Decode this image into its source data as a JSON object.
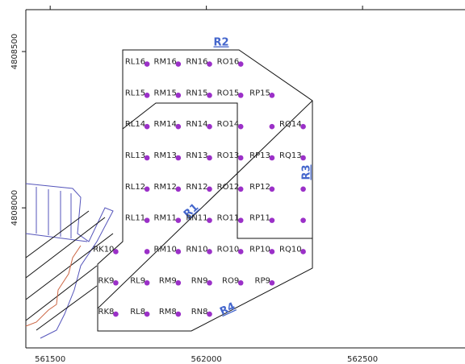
{
  "map": {
    "xlim": [
      561422,
      562828
    ],
    "ylim": [
      4807552,
      4808634
    ],
    "xticks": [
      561500,
      562000,
      562500
    ],
    "yticks": [
      4808000,
      4808500
    ],
    "regions": [
      "R1",
      "R2",
      "R3",
      "R4"
    ],
    "points": [
      {
        "label": "RL16",
        "e": 561810,
        "n": 4808460
      },
      {
        "label": "RM16",
        "e": 561910,
        "n": 4808460
      },
      {
        "label": "RN16",
        "e": 562010,
        "n": 4808460
      },
      {
        "label": "RO16",
        "e": 562110,
        "n": 4808460
      },
      {
        "label": "RL15",
        "e": 561810,
        "n": 4808360
      },
      {
        "label": "RM15",
        "e": 561910,
        "n": 4808360
      },
      {
        "label": "RN15",
        "e": 562010,
        "n": 4808360
      },
      {
        "label": "RO15",
        "e": 562110,
        "n": 4808360
      },
      {
        "label": "RP15",
        "e": 562210,
        "n": 4808360
      },
      {
        "label": "RL14",
        "e": 561810,
        "n": 4808260
      },
      {
        "label": "RM14",
        "e": 561910,
        "n": 4808260
      },
      {
        "label": "RN14",
        "e": 562010,
        "n": 4808260
      },
      {
        "label": "RO14",
        "e": 562110,
        "n": 4808260
      },
      {
        "label": null,
        "e": 562210,
        "n": 4808260
      },
      {
        "label": "RQ14",
        "e": 562310,
        "n": 4808260
      },
      {
        "label": "RL13",
        "e": 561810,
        "n": 4808160
      },
      {
        "label": "RM13",
        "e": 561910,
        "n": 4808160
      },
      {
        "label": "RN13",
        "e": 562010,
        "n": 4808160
      },
      {
        "label": "RO13",
        "e": 562110,
        "n": 4808160
      },
      {
        "label": "RP13",
        "e": 562210,
        "n": 4808160
      },
      {
        "label": "RQ13",
        "e": 562310,
        "n": 4808160
      },
      {
        "label": "RL12",
        "e": 561810,
        "n": 4808060
      },
      {
        "label": "RM12",
        "e": 561910,
        "n": 4808060
      },
      {
        "label": "RN12",
        "e": 562010,
        "n": 4808060
      },
      {
        "label": "RO12",
        "e": 562110,
        "n": 4808060
      },
      {
        "label": "RP12",
        "e": 562210,
        "n": 4808060
      },
      {
        "label": null,
        "e": 562310,
        "n": 4808060
      },
      {
        "label": "RL11",
        "e": 561810,
        "n": 4807960
      },
      {
        "label": "RM11",
        "e": 561910,
        "n": 4807960
      },
      {
        "label": "RN11",
        "e": 562010,
        "n": 4807960
      },
      {
        "label": "RO11",
        "e": 562110,
        "n": 4807960
      },
      {
        "label": "RP11",
        "e": 562210,
        "n": 4807960
      },
      {
        "label": null,
        "e": 562310,
        "n": 4807960
      },
      {
        "label": "RK10",
        "e": 561710,
        "n": 4807860
      },
      {
        "label": null,
        "e": 561810,
        "n": 4807860
      },
      {
        "label": "RM10",
        "e": 561910,
        "n": 4807860
      },
      {
        "label": "RN10",
        "e": 562010,
        "n": 4807860
      },
      {
        "label": "RO10",
        "e": 562110,
        "n": 4807860
      },
      {
        "label": "RP10",
        "e": 562210,
        "n": 4807860
      },
      {
        "label": "RQ10",
        "e": 562310,
        "n": 4807860
      },
      {
        "label": "RK9",
        "e": 561710,
        "n": 4807760
      },
      {
        "label": "RL9",
        "e": 561810,
        "n": 4807760
      },
      {
        "label": "RM9",
        "e": 561910,
        "n": 4807760
      },
      {
        "label": "RN9",
        "e": 562010,
        "n": 4807760
      },
      {
        "label": "RO9",
        "e": 562110,
        "n": 4807760
      },
      {
        "label": "RP9",
        "e": 562210,
        "n": 4807760
      },
      {
        "label": "RK8",
        "e": 561710,
        "n": 4807660
      },
      {
        "label": "RL8",
        "e": 561810,
        "n": 4807660
      },
      {
        "label": "RM8",
        "e": 561910,
        "n": 4807660
      },
      {
        "label": "RN8",
        "e": 562010,
        "n": 4807660
      }
    ]
  }
}
